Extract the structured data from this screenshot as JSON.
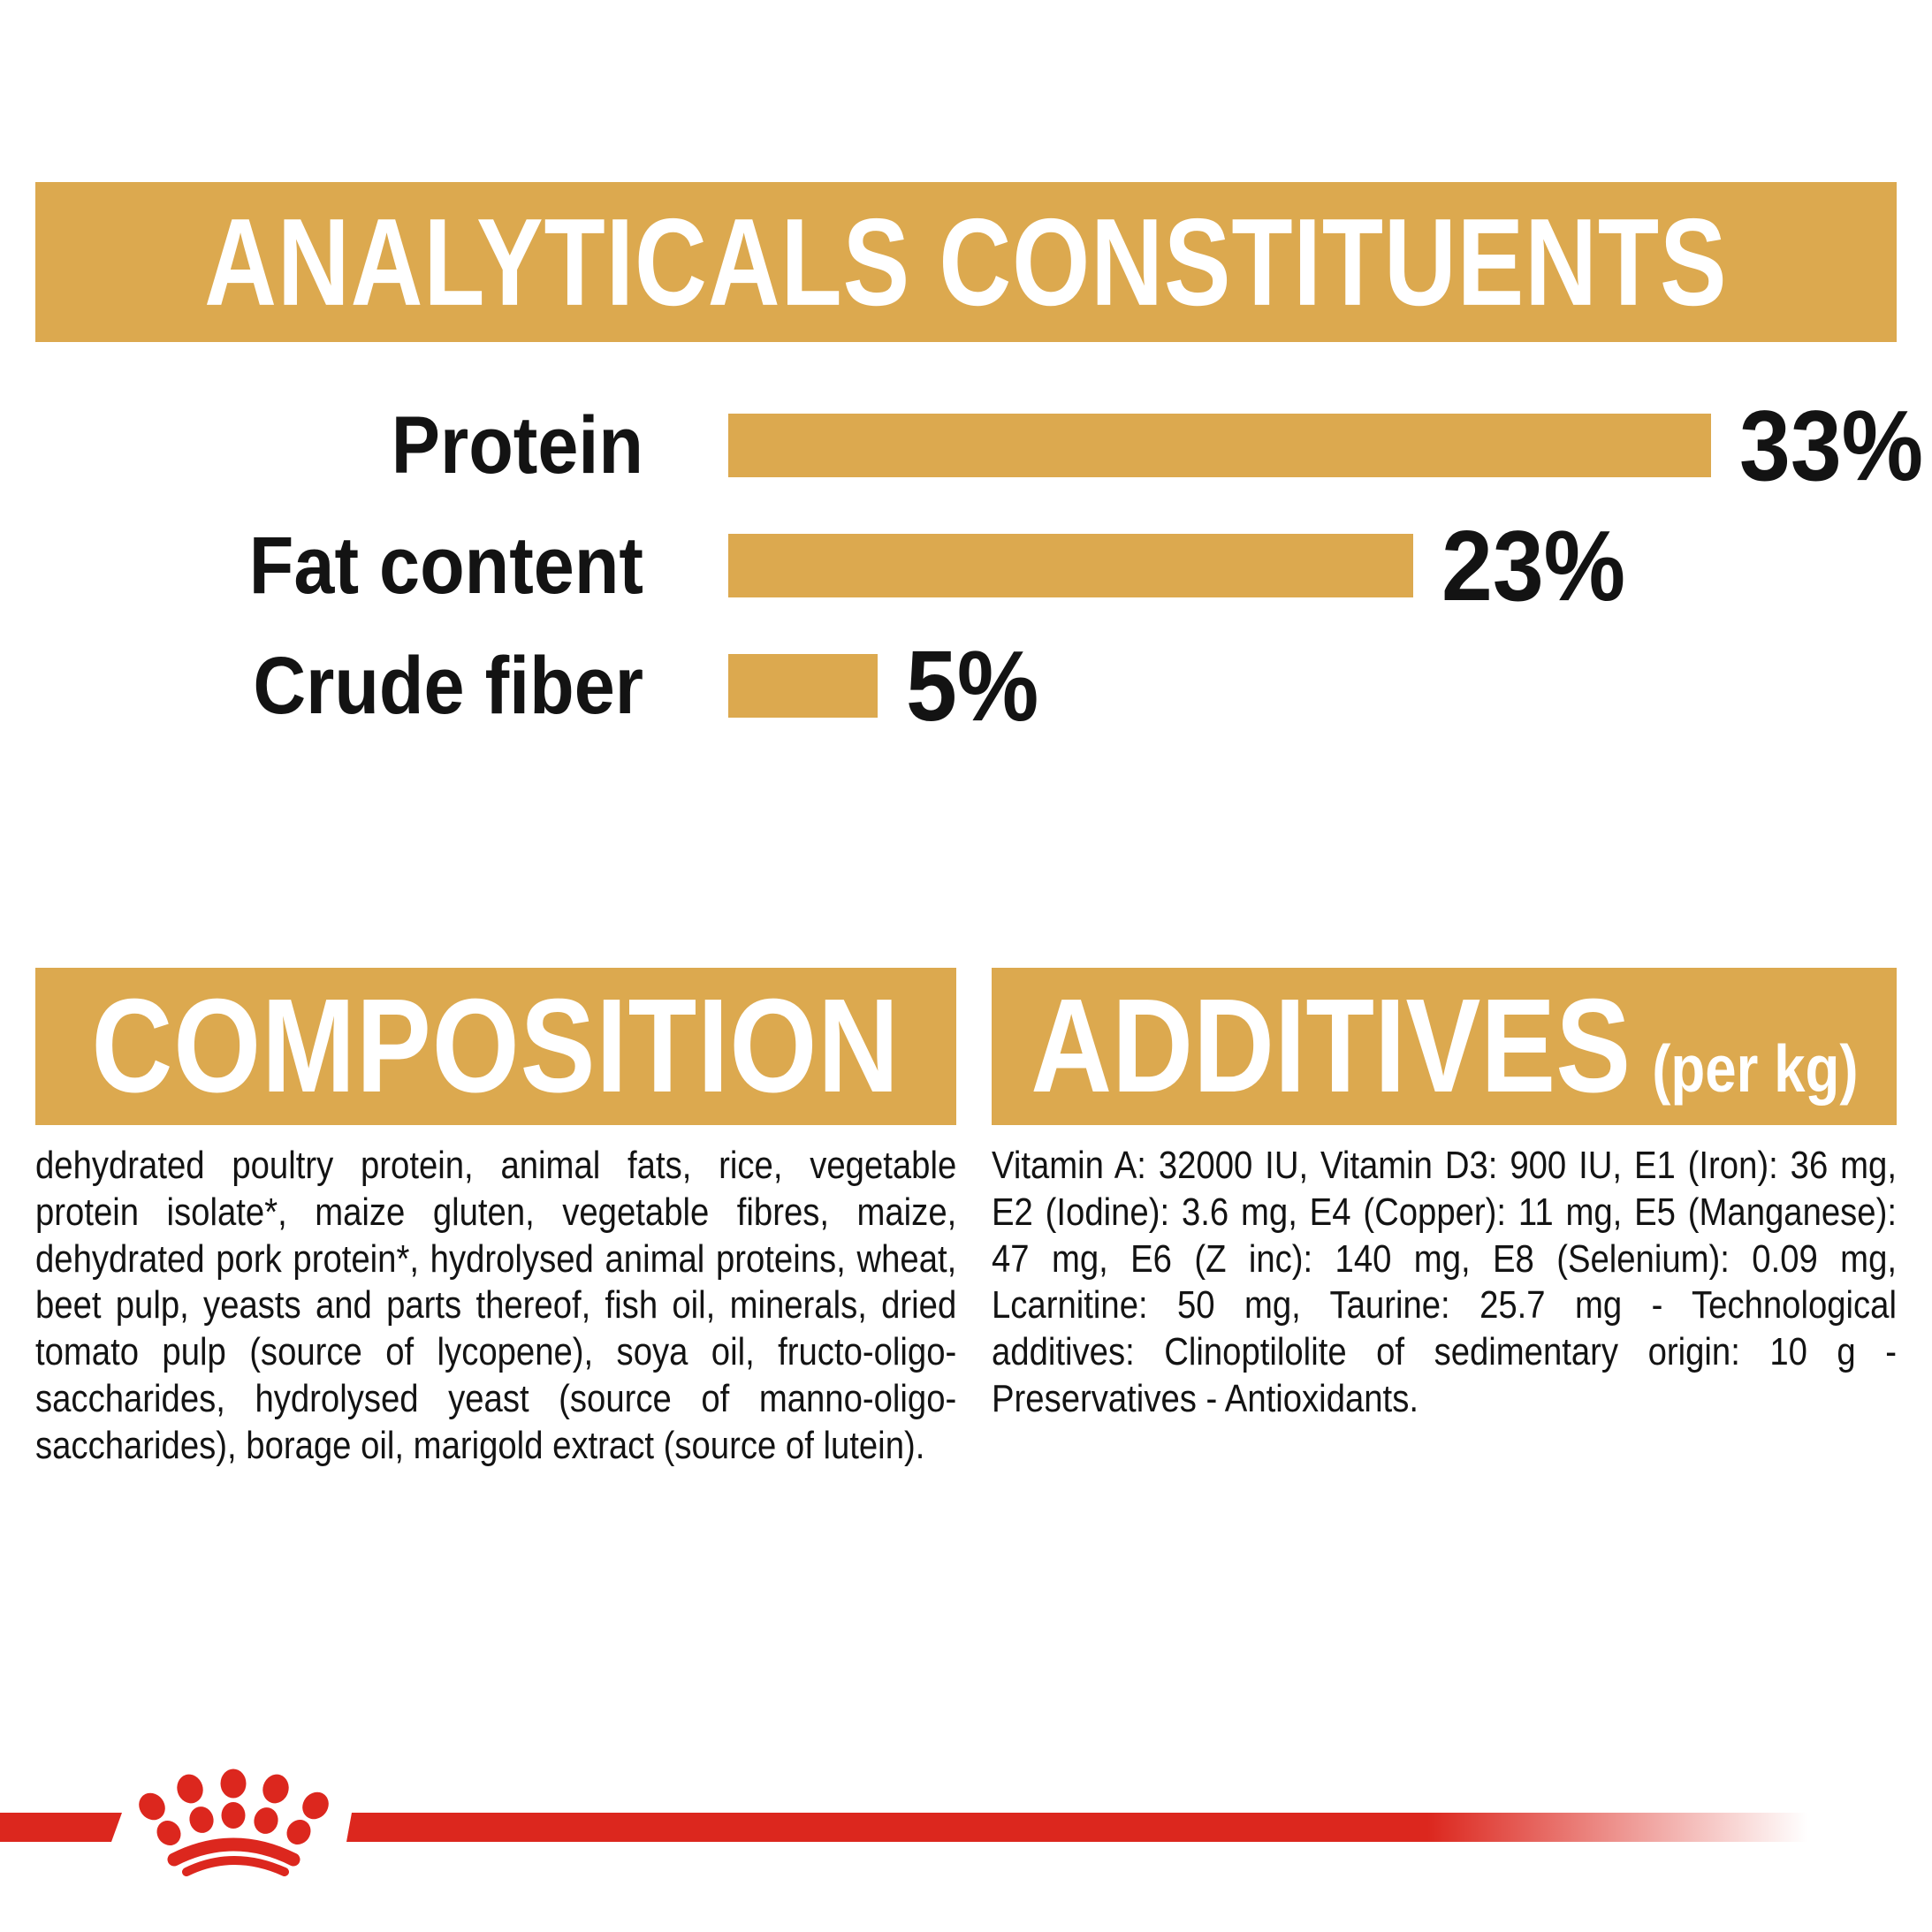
{
  "colors": {
    "gold": "#DCA94F",
    "red": "#DC271E",
    "ink": "#131313",
    "white": "#FFFFFF"
  },
  "analyticals": {
    "title": "ANALYTICALS CONSTITUENTS",
    "rows": [
      {
        "label": "Protein",
        "value": "33%",
        "percent": 33
      },
      {
        "label": "Fat content",
        "value": "23%",
        "percent": 23
      },
      {
        "label": "Crude fiber",
        "value": "5%",
        "percent": 5
      }
    ]
  },
  "chart_data": {
    "type": "bar",
    "orientation": "horizontal",
    "title": "ANALYTICALS CONSTITUENTS",
    "categories": [
      "Protein",
      "Fat content",
      "Crude fiber"
    ],
    "values": [
      33,
      23,
      5
    ],
    "value_labels": [
      "33%",
      "23%",
      "5%"
    ],
    "unit": "%",
    "bar_color": "#DCA94F",
    "grid": false,
    "legend": false
  },
  "composition": {
    "title": "COMPOSITION",
    "body": "dehydrated poultry protein, animal fats, rice, vegetable protein isolate*, maize gluten, vegetable fibres, maize, dehydrated pork protein*, hydrolysed animal proteins, wheat, beet pulp, yeasts and parts thereof, fish oil, minerals, dried tomato pulp (source of lycopene), soya oil, fructo-oligo-saccharides, hydrolysed yeast (source of manno-oligo-saccharides), borage oil, marigold extract (source of lutein)."
  },
  "additives": {
    "title": "ADDITIVES",
    "subtitle": "(per kg)",
    "body": "Vitamin A: 32000 IU, Vitamin D3: 900 IU, E1 (Iron): 36 mg, E2 (Iodine): 3.6 mg, E4 (Copper): 11 mg, E5 (Manganese): 47 mg, E6 (Z inc): 140 mg, E8 (Selenium): 0.09 mg, Lcarnitine: 50 mg, Taurine: 25.7 mg - Technological additives: Clinoptilolite of sedimentary origin: 10 g - Preservatives - Antioxidants."
  },
  "footer": {
    "logo_name": "royal-canin-crown"
  }
}
